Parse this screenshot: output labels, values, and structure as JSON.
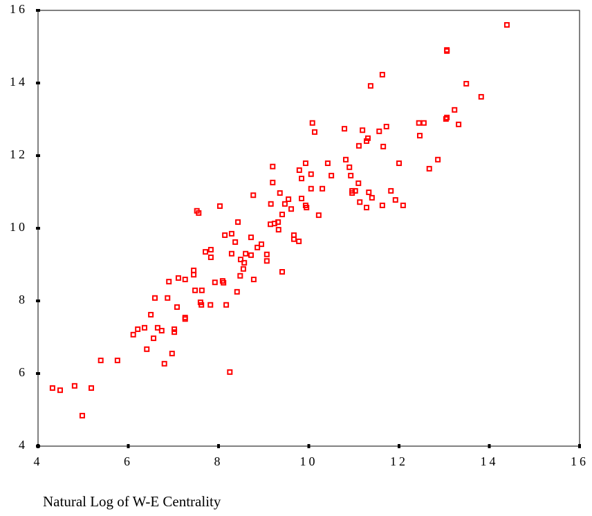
{
  "chart_data": {
    "type": "scatter",
    "xlabel": "Natural Log of W-E Centrality",
    "color": "#ff0000",
    "x": [
      4.32,
      4.49,
      4.81,
      4.98,
      5.18,
      5.39,
      5.76,
      6.11,
      6.21,
      6.36,
      6.41,
      6.5,
      6.56,
      6.59,
      6.65,
      6.74,
      6.8,
      6.87,
      6.9,
      6.97,
      7.02,
      7.02,
      7.08,
      7.11,
      7.26,
      7.26,
      7.26,
      7.45,
      7.45,
      7.48,
      7.52,
      7.56,
      7.6,
      7.62,
      7.63,
      7.71,
      7.82,
      7.83,
      7.83,
      7.92,
      8.03,
      8.09,
      8.11,
      8.14,
      8.17,
      8.25,
      8.29,
      8.29,
      8.37,
      8.41,
      8.43,
      8.48,
      8.49,
      8.55,
      8.57,
      8.6,
      8.72,
      8.77,
      8.72,
      8.78,
      8.86,
      8.95,
      9.07,
      9.07,
      9.15,
      9.16,
      9.2,
      9.2,
      9.24,
      9.32,
      9.33,
      9.36,
      9.41,
      9.41,
      9.47,
      9.55,
      9.61,
      9.67,
      9.67,
      9.78,
      9.79,
      9.84,
      9.84,
      9.93,
      9.95,
      9.93,
      10.05,
      10.05,
      10.08,
      10.13,
      10.22,
      10.3,
      10.42,
      10.5,
      10.79,
      10.82,
      10.9,
      10.93,
      10.96,
      10.96,
      11.03,
      11.1,
      11.11,
      11.13,
      11.19,
      11.28,
      11.28,
      11.31,
      11.33,
      11.4,
      11.56,
      11.63,
      11.65,
      11.63,
      11.72,
      11.82,
      11.92,
      12.0,
      12.09,
      12.46,
      12.44,
      12.55,
      12.67,
      12.86,
      13.04,
      13.06,
      13.06,
      13.06,
      13.23,
      13.32,
      13.49,
      13.82,
      14.39,
      11.37
    ],
    "values": [
      5.6,
      5.54,
      5.66,
      4.84,
      5.6,
      6.36,
      6.36,
      7.07,
      7.22,
      7.26,
      6.67,
      7.62,
      6.97,
      8.08,
      7.26,
      7.18,
      6.27,
      8.08,
      8.53,
      6.55,
      7.22,
      7.14,
      7.83,
      8.63,
      8.59,
      7.54,
      7.5,
      8.84,
      8.72,
      8.29,
      10.48,
      10.42,
      7.96,
      7.89,
      8.29,
      9.35,
      7.89,
      9.41,
      9.2,
      8.51,
      10.61,
      8.55,
      8.5,
      9.81,
      7.89,
      6.04,
      9.85,
      9.3,
      9.62,
      8.25,
      10.17,
      8.69,
      9.14,
      8.88,
      9.05,
      9.3,
      9.26,
      10.91,
      9.75,
      8.59,
      9.47,
      9.56,
      9.28,
      9.1,
      10.11,
      10.67,
      11.26,
      11.7,
      10.13,
      10.17,
      9.96,
      10.97,
      8.8,
      10.38,
      10.67,
      10.8,
      10.53,
      9.81,
      9.7,
      9.64,
      11.6,
      11.37,
      10.82,
      10.63,
      10.57,
      11.79,
      11.49,
      11.09,
      12.9,
      12.65,
      10.36,
      11.09,
      11.79,
      11.45,
      12.74,
      11.89,
      11.68,
      11.45,
      11.03,
      10.97,
      11.03,
      11.24,
      12.27,
      10.72,
      12.7,
      10.57,
      12.4,
      12.48,
      10.99,
      10.84,
      12.67,
      10.63,
      12.25,
      14.23,
      12.8,
      11.03,
      10.78,
      11.79,
      10.63,
      12.55,
      12.9,
      12.9,
      11.64,
      11.89,
      13.01,
      13.05,
      14.91,
      14.88,
      13.26,
      12.86,
      13.98,
      13.62,
      15.6,
      13.92
    ],
    "xlim": [
      4,
      16
    ],
    "xticks": [
      4,
      6,
      8,
      10,
      12,
      14,
      16
    ],
    "ylim": [
      4,
      16
    ],
    "yticks": [
      4,
      6,
      8,
      10,
      12,
      14,
      16
    ]
  }
}
